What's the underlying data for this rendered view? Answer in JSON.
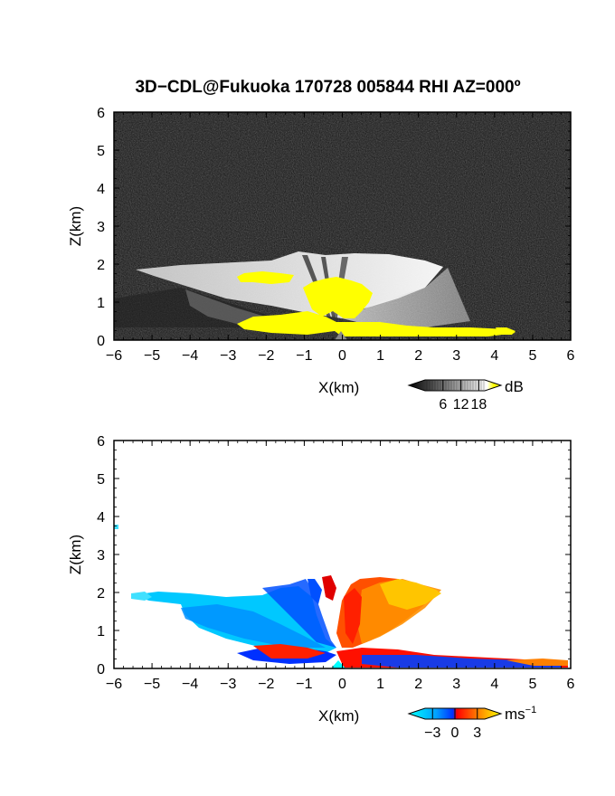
{
  "title": "3D−CDL@Fukuoka 170728 005844 RHI AZ=000º",
  "chart_data": [
    {
      "type": "heatmap",
      "panel": "top",
      "xlabel": "X(km)",
      "ylabel": "Z(km)",
      "xlim": [
        -6,
        6
      ],
      "ylim": [
        0,
        6
      ],
      "xticks": [
        "−6",
        "−5",
        "−4",
        "−3",
        "−2",
        "−1",
        "0",
        "1",
        "2",
        "3",
        "4",
        "5",
        "6"
      ],
      "yticks": [
        "0",
        "1",
        "2",
        "3",
        "4",
        "5",
        "6"
      ],
      "colorbar": {
        "unit": "dB",
        "ticks": [
          "6",
          "12",
          "18"
        ],
        "tick_values": [
          6,
          12,
          18
        ],
        "range": [
          0,
          20
        ],
        "colors": [
          "#000000",
          "#ffffff",
          "#ffff00"
        ]
      }
    },
    {
      "type": "heatmap",
      "panel": "bottom",
      "xlabel": "X(km)",
      "ylabel": "Z(km)",
      "xlim": [
        -6,
        6
      ],
      "ylim": [
        0,
        6
      ],
      "xticks": [
        "−6",
        "−5",
        "−4",
        "−3",
        "−2",
        "−1",
        "0",
        "1",
        "2",
        "3",
        "4",
        "5",
        "6"
      ],
      "yticks": [
        "0",
        "1",
        "2",
        "3",
        "4",
        "5",
        "6"
      ],
      "colorbar": {
        "unit": "ms",
        "unit_exp": "−1",
        "ticks": [
          "−3",
          "0",
          "3"
        ],
        "tick_values": [
          -3,
          0,
          3
        ],
        "range": [
          -4,
          4
        ],
        "colors": [
          "#00ffff",
          "#0050ff",
          "#ff0000",
          "#ff8000",
          "#ffff00"
        ]
      }
    }
  ]
}
